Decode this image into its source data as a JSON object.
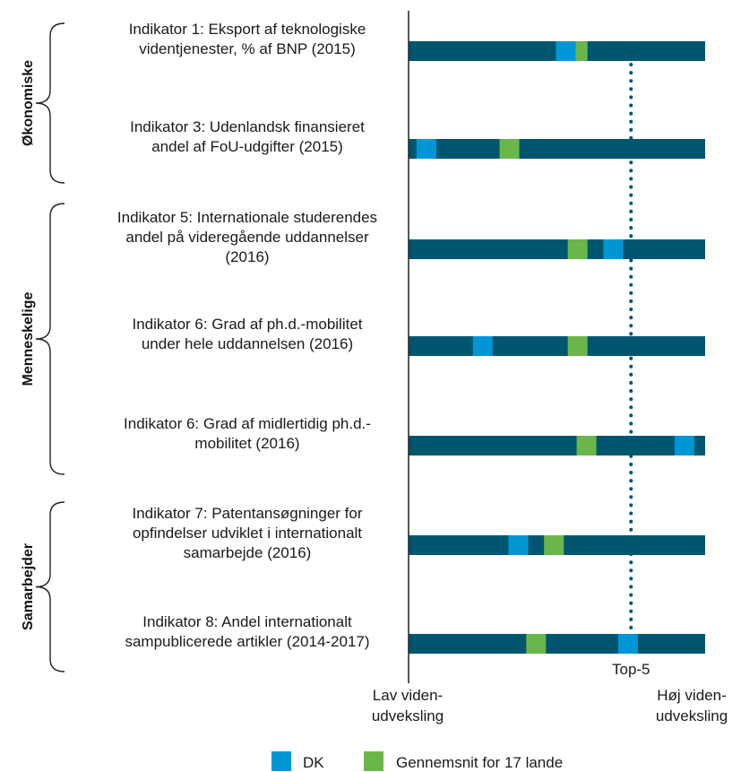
{
  "chart_data": {
    "type": "dot-strip",
    "scale": [
      0,
      100
    ],
    "groups": [
      {
        "label": "Økonomiske",
        "indicators": [
          0,
          1
        ]
      },
      {
        "label": "Menneskelige",
        "indicators": [
          2,
          3,
          4
        ]
      },
      {
        "label": "Samarbejder",
        "indicators": [
          5,
          6
        ]
      }
    ],
    "indicators": [
      {
        "lines": [
          "Indikator 1: Eksport af teknologiske",
          "videntjenester, % af BNP (2015)"
        ],
        "dk": 53,
        "avg": 57
      },
      {
        "lines": [
          "Indikator 3: Udenlandsk finansieret",
          "andel af FoU-udgifter (2015)"
        ],
        "dk": 6,
        "avg": 34
      },
      {
        "lines": [
          "Indikator 5: Internationale studerendes",
          "andel på videregående uddannelser",
          "(2016)"
        ],
        "dk": 69,
        "avg": 57
      },
      {
        "lines": [
          "Indikator 6: Grad af ph.d.-mobilitet",
          "under hele uddannelsen (2016)"
        ],
        "dk": 25,
        "avg": 57
      },
      {
        "lines": [
          "Indikator 6: Grad af midlertidig ph.d.-",
          "mobilitet (2016)"
        ],
        "dk": 93,
        "avg": 60
      },
      {
        "lines": [
          "Indikator 7: Patentansøgninger for",
          "opfindelser udviklet i internationalt",
          "samarbejde (2016)"
        ],
        "dk": 37,
        "avg": 49
      },
      {
        "lines": [
          "Indikator 8: Andel internationalt",
          "sampublicerede artikler (2014-2017)"
        ],
        "dk": 74,
        "avg": 43
      }
    ],
    "top5_value": 75,
    "top5_label": "Top-5",
    "axis_low": [
      "Lav viden-",
      "udveksling"
    ],
    "axis_high": [
      "Høj viden-",
      "udveksling"
    ],
    "legend": [
      {
        "key": "dk",
        "label": "DK",
        "color": "#0096d6"
      },
      {
        "key": "avg",
        "label": "Gennemsnit for 17 lande",
        "color": "#6ab64a"
      }
    ],
    "bar_color": "#00566f",
    "dotted_color": "#00566f"
  }
}
